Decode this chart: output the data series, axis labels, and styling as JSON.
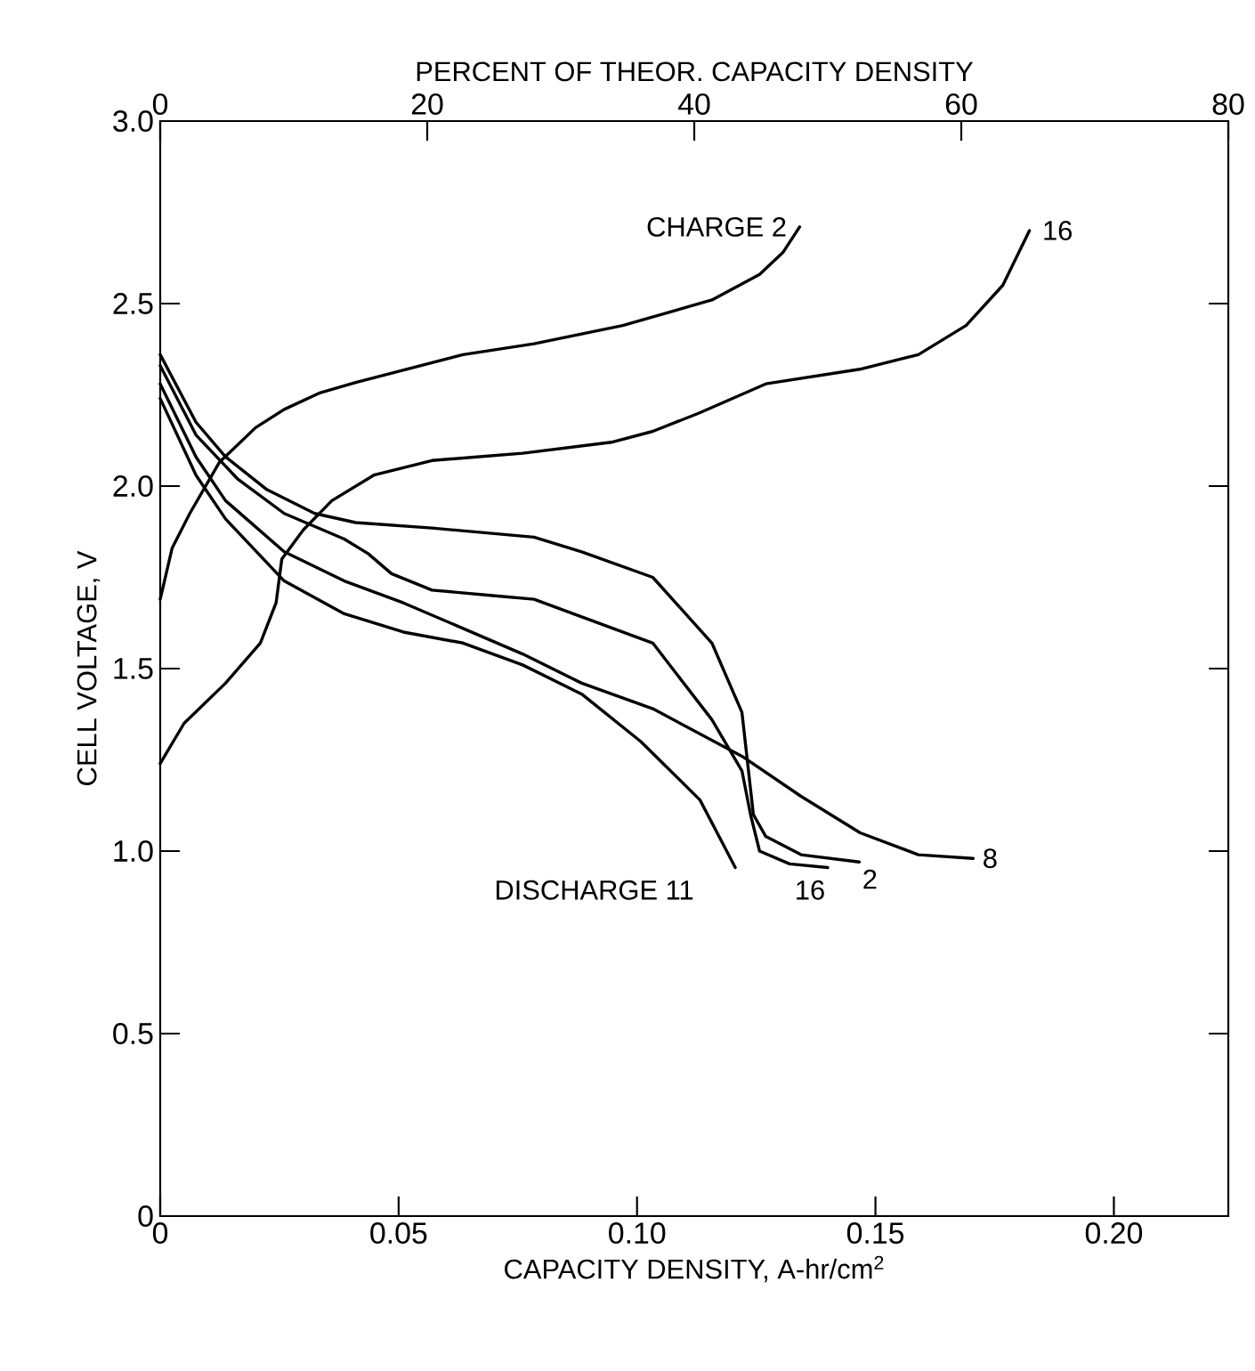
{
  "chart_data": {
    "type": "line",
    "xlabel": "CAPACITY DENSITY, A-hr/cm$^{2}$",
    "ylabel": "CELL VOLTAGE, V",
    "x2label": "PERCENT OF THEOR. CAPACITY DENSITY",
    "xlim": [
      0,
      0.224
    ],
    "ylim": [
      0,
      3
    ],
    "x2lim": [
      0,
      80
    ],
    "xticks": [
      0,
      0.05,
      {
        "value": 0.1,
        "label": "0.10"
      },
      0.15,
      {
        "value": 0.2,
        "label": "0.20"
      }
    ],
    "yticks": [
      0,
      0.5,
      {
        "value": 1,
        "label": "1.0"
      },
      1.5,
      {
        "value": 2,
        "label": "2.0"
      },
      2.5,
      {
        "value": 3,
        "label": "3.0"
      }
    ],
    "x2ticks": [
      0,
      20,
      40,
      60,
      80
    ],
    "grid": false,
    "legend": false,
    "marker": "none",
    "line_style": "solid",
    "series": [
      {
        "name": "CHARGE 2",
        "color": "#000000",
        "x": [
          0,
          0.0025,
          0.0062,
          0.0124,
          0.02,
          0.026,
          0.0336,
          0.041,
          0.0635,
          0.0784,
          0.097,
          0.1157,
          0.1257,
          0.1306,
          0.1341
        ],
        "values": [
          1.69,
          1.83,
          1.925,
          2.065,
          2.16,
          2.21,
          2.256,
          2.284,
          2.36,
          2.39,
          2.44,
          2.51,
          2.58,
          2.64,
          2.71
        ]
      },
      {
        "name": "16",
        "color": "#000000",
        "x": [
          0,
          0.005,
          0.0137,
          0.021,
          0.0243,
          0.0255,
          0.03,
          0.036,
          0.0448,
          0.057,
          0.076,
          0.0946,
          0.1033,
          0.113,
          0.127,
          0.1467,
          0.159,
          0.169,
          0.1767,
          0.1823
        ],
        "values": [
          1.24,
          1.35,
          1.46,
          1.57,
          1.68,
          1.8,
          1.88,
          1.96,
          2.03,
          2.07,
          2.09,
          2.12,
          2.15,
          2.2,
          2.28,
          2.32,
          2.36,
          2.44,
          2.55,
          2.7
        ]
      },
      {
        "name": "DISCHARGE 11",
        "color": "#000000",
        "x": [
          0,
          0.0075,
          0.0137,
          0.026,
          0.0386,
          0.051,
          0.0635,
          0.076,
          0.0884,
          0.1008,
          0.1132,
          0.118,
          0.1206
        ],
        "values": [
          2.24,
          2.03,
          1.91,
          1.74,
          1.65,
          1.6,
          1.57,
          1.51,
          1.43,
          1.3,
          1.14,
          1.02,
          0.955
        ]
      },
      {
        "name": "16",
        "color": "#000000",
        "x": [
          0,
          0.0075,
          0.0162,
          0.026,
          0.0386,
          0.0436,
          0.0485,
          0.057,
          0.0697,
          0.0784,
          0.1033,
          0.1157,
          0.122,
          0.1238,
          0.1257,
          0.132,
          0.14
        ],
        "values": [
          2.33,
          2.14,
          2.02,
          1.925,
          1.855,
          1.815,
          1.76,
          1.715,
          1.7,
          1.69,
          1.57,
          1.36,
          1.22,
          1.1,
          1.0,
          0.965,
          0.955
        ]
      },
      {
        "name": "2",
        "color": "#000000",
        "x": [
          0,
          0.0075,
          0.0137,
          0.0224,
          0.0324,
          0.041,
          0.057,
          0.0784,
          0.0884,
          0.1033,
          0.1157,
          0.122,
          0.1232,
          0.1244,
          0.127,
          0.1344,
          0.1466
        ],
        "values": [
          2.36,
          2.175,
          2.08,
          1.99,
          1.925,
          1.9,
          1.885,
          1.86,
          1.82,
          1.75,
          1.57,
          1.38,
          1.24,
          1.1,
          1.04,
          0.99,
          0.97
        ]
      },
      {
        "name": "8",
        "color": "#000000",
        "x": [
          0,
          0.0075,
          0.0137,
          0.026,
          0.0386,
          0.051,
          0.0635,
          0.076,
          0.0884,
          0.1033,
          0.122,
          0.1344,
          0.1468,
          0.159,
          0.1705
        ],
        "values": [
          2.28,
          2.08,
          1.96,
          1.82,
          1.74,
          1.68,
          1.61,
          1.54,
          1.46,
          1.39,
          1.26,
          1.15,
          1.05,
          0.99,
          0.98
        ]
      }
    ]
  }
}
